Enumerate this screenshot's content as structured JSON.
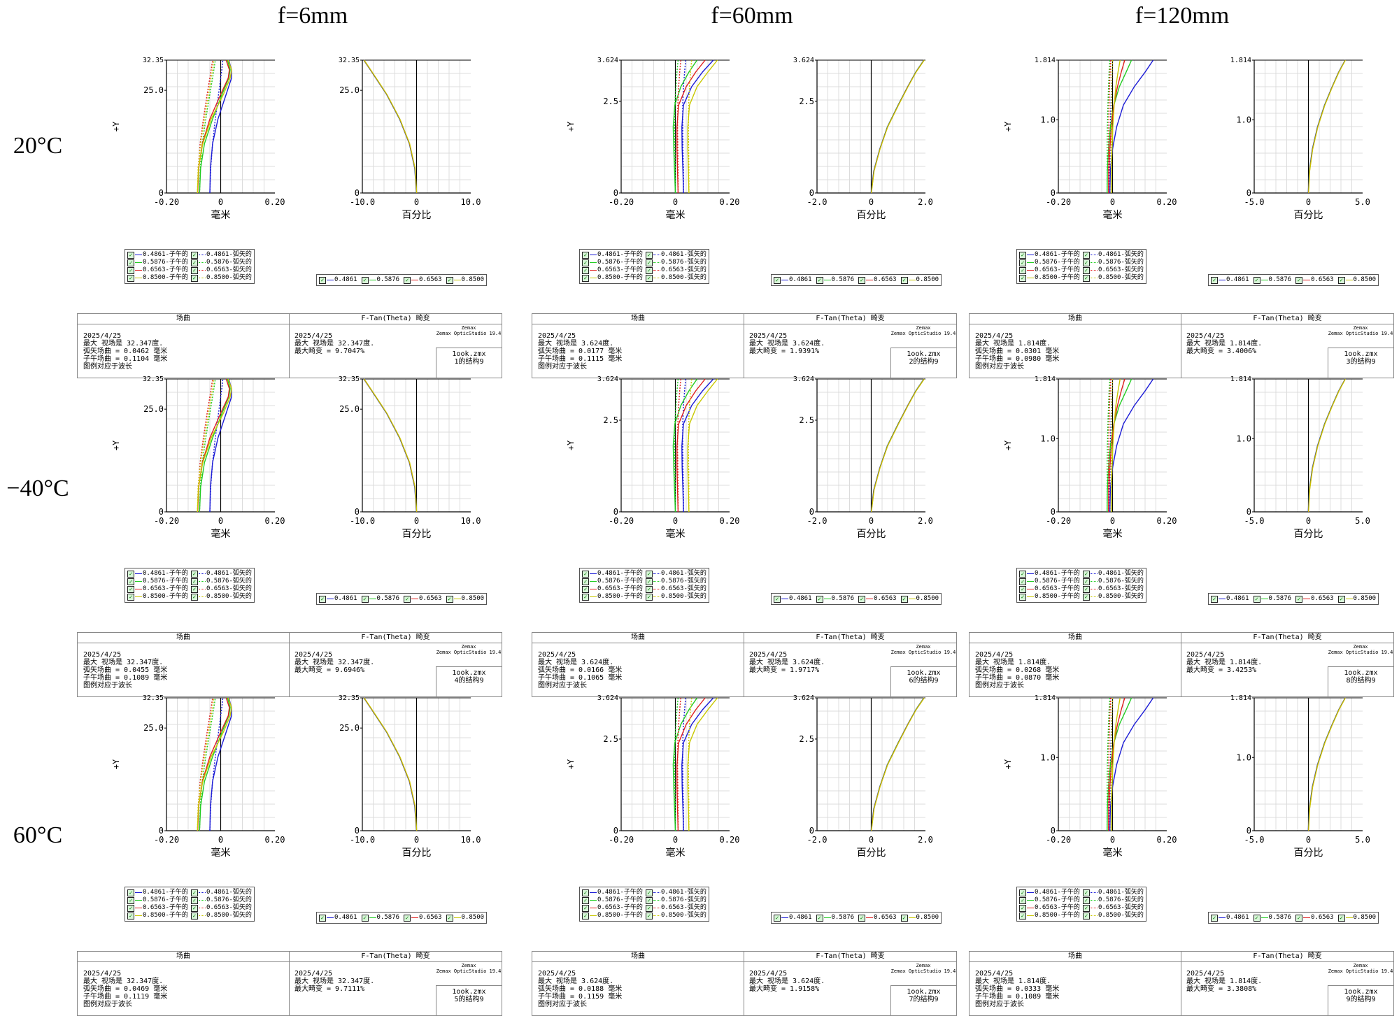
{
  "column_titles": [
    "f=6mm",
    "f=60mm",
    "f=120mm"
  ],
  "row_titles": [
    "20°C",
    "−40°C",
    "60°C"
  ],
  "colors": {
    "0.4861": "#1c1cd6",
    "0.5876": "#22cc22",
    "0.6563": "#e02020",
    "0.8500": "#c8c800"
  },
  "labels": {
    "field_header": "场曲",
    "distortion_header": "F-Tan(Theta) 畸变",
    "y_axis": "+Y",
    "field_x_axis": "毫米",
    "distortion_x_axis": "百分比",
    "date": "2025/4/25",
    "legend_note": "图例对应于波长",
    "zemax_line1": "Zemax",
    "zemax_line2": "Zemax OpticStudio 19.4",
    "file": "1ook.zmx"
  },
  "legend_field": [
    "0.4861-子午的",
    "0.4861-弧矢的",
    "0.5876-子午的",
    "0.5876-弧矢的",
    "0.6563-子午的",
    "0.6563-弧矢的",
    "0.8500-子午的",
    "0.8500-弧矢的"
  ],
  "legend_distortion": [
    "0.4861",
    "0.5876",
    "0.6563",
    "0.8500"
  ],
  "cells": [
    {
      "col": 0,
      "row": 0,
      "max_field": "最大 视场是 32.347度.",
      "sag": "弧矢场曲 = 0.0462 毫米",
      "tan": "子午场曲 = 0.1104 毫米",
      "dist": "最大畸变 = 9.7047%",
      "config": "1的结构9"
    },
    {
      "col": 1,
      "row": 0,
      "max_field": "最大 视场是 3.624度.",
      "sag": "弧矢场曲 = 0.0177 毫米",
      "tan": "子午场曲 = 0.1115 毫米",
      "dist": "最大畸变 = 1.9391%",
      "config": "2的结构9"
    },
    {
      "col": 2,
      "row": 0,
      "max_field": "最大 视场是 1.814度.",
      "sag": "弧矢场曲 = 0.0301 毫米",
      "tan": "子午场曲 = 0.0980 毫米",
      "dist": "最大畸变 = 3.4006%",
      "config": "3的结构9"
    },
    {
      "col": 0,
      "row": 1,
      "max_field": "最大 视场是 32.347度.",
      "sag": "弧矢场曲 = 0.0455 毫米",
      "tan": "子午场曲 = 0.1089 毫米",
      "dist": "最大畸变 = 9.6946%",
      "config": "4的结构9"
    },
    {
      "col": 1,
      "row": 1,
      "max_field": "最大 视场是 3.624度.",
      "sag": "弧矢场曲 = 0.0166 毫米",
      "tan": "子午场曲 = 0.1065 毫米",
      "dist": "最大畸变 = 1.9717%",
      "config": "6的结构9"
    },
    {
      "col": 2,
      "row": 1,
      "max_field": "最大 视场是 1.814度.",
      "sag": "弧矢场曲 = 0.0268 毫米",
      "tan": "子午场曲 = 0.0870 毫米",
      "dist": "最大畸变 = 3.4253%",
      "config": "8的结构9"
    },
    {
      "col": 0,
      "row": 2,
      "max_field": "最大 视场是 32.347度.",
      "sag": "弧矢场曲 = 0.0469 毫米",
      "tan": "子午场曲 = 0.1119 毫米",
      "dist": "最大畸变 = 9.7111%",
      "config": "5的结构9"
    },
    {
      "col": 1,
      "row": 2,
      "max_field": "最大 视场是 3.624度.",
      "sag": "弧矢场曲 = 0.0188 毫米",
      "tan": "子午场曲 = 0.1159 毫米",
      "dist": "最大畸变 = 1.9158%",
      "config": "7的结构9"
    },
    {
      "col": 2,
      "row": 2,
      "max_field": "最大 视场是 1.814度.",
      "sag": "弧矢场曲 = 0.0333 毫米",
      "tan": "子午场曲 = 0.1089 毫米",
      "dist": "最大畸变 = 3.3808%",
      "config": "9的结构9"
    }
  ],
  "chart_data": [
    {
      "type": "line",
      "lens": "f=6mm",
      "field_curvature": {
        "xlim": [
          -0.2,
          0.2
        ],
        "ylim": [
          0,
          32.35
        ],
        "xticks": [
          "-0.20",
          "0",
          "0.20"
        ],
        "yticks": [
          "0",
          "25.0",
          "32.35"
        ],
        "y": [
          0,
          6,
          12,
          18,
          24,
          28,
          30,
          32.35
        ],
        "series": [
          {
            "name": "0.4861-子午的",
            "x": [
              -0.04,
              -0.038,
              -0.03,
              -0.01,
              0.02,
              0.04,
              0.04,
              0.03
            ]
          },
          {
            "name": "0.4861-弧矢的",
            "x": [
              -0.04,
              -0.037,
              -0.03,
              -0.02,
              -0.008,
              0.0,
              0.004,
              0.008
            ]
          },
          {
            "name": "0.5876-子午的",
            "x": [
              -0.078,
              -0.074,
              -0.06,
              -0.03,
              0.005,
              0.03,
              0.035,
              0.025
            ]
          },
          {
            "name": "0.5876-弧矢的",
            "x": [
              -0.078,
              -0.075,
              -0.068,
              -0.055,
              -0.04,
              -0.03,
              -0.025,
              -0.02
            ]
          },
          {
            "name": "0.6563-子午的",
            "x": [
              -0.085,
              -0.081,
              -0.068,
              -0.04,
              0.0,
              0.028,
              0.032,
              0.02
            ]
          },
          {
            "name": "0.6563-弧矢的",
            "x": [
              -0.085,
              -0.083,
              -0.076,
              -0.064,
              -0.05,
              -0.04,
              -0.035,
              -0.03
            ]
          },
          {
            "name": "0.8500-子午的",
            "x": [
              -0.086,
              -0.082,
              -0.066,
              -0.035,
              0.01,
              0.035,
              0.04,
              0.028
            ]
          },
          {
            "name": "0.8500-弧矢的",
            "x": [
              -0.086,
              -0.083,
              -0.074,
              -0.06,
              -0.045,
              -0.035,
              -0.03,
              -0.025
            ]
          }
        ]
      },
      "distortion": {
        "xlim": [
          -10,
          10
        ],
        "ylim": [
          0,
          32.35
        ],
        "xticks": [
          "-10.0",
          "0",
          "10.0"
        ],
        "yticks": [
          "0",
          "25.0",
          "32.35"
        ],
        "y": [
          0,
          6,
          12,
          18,
          24,
          28,
          30,
          32.35
        ],
        "x": [
          0,
          -0.3,
          -1.3,
          -3.1,
          -5.5,
          -7.5,
          -8.5,
          -9.7
        ]
      }
    },
    {
      "type": "line",
      "lens": "f=60mm",
      "field_curvature": {
        "xlim": [
          -0.2,
          0.2
        ],
        "ylim": [
          0,
          3.624
        ],
        "xticks": [
          "-0.20",
          "0",
          "0.20"
        ],
        "yticks": [
          "0",
          "2.5",
          "3.624"
        ],
        "y": [
          0,
          0.6,
          1.2,
          1.8,
          2.4,
          2.9,
          3.3,
          3.624
        ],
        "series": [
          {
            "name": "0.4861-子午的",
            "x": [
              0.03,
              0.028,
              0.025,
              0.024,
              0.03,
              0.06,
              0.1,
              0.14
            ]
          },
          {
            "name": "0.4861-弧矢的",
            "x": [
              0.03,
              0.03,
              0.028,
              0.027,
              0.027,
              0.03,
              0.034,
              0.038
            ]
          },
          {
            "name": "0.5876-子午的",
            "x": [
              0.0,
              -0.003,
              -0.006,
              -0.008,
              -0.002,
              0.02,
              0.05,
              0.08
            ]
          },
          {
            "name": "0.5876-弧矢的",
            "x": [
              0.0,
              0.0,
              -0.002,
              -0.003,
              -0.002,
              0.002,
              0.006,
              0.01
            ]
          },
          {
            "name": "0.6563-子午的",
            "x": [
              0.01,
              0.008,
              0.006,
              0.006,
              0.012,
              0.04,
              0.075,
              0.11
            ]
          },
          {
            "name": "0.6563-弧矢的",
            "x": [
              0.01,
              0.01,
              0.009,
              0.008,
              0.009,
              0.012,
              0.016,
              0.02
            ]
          },
          {
            "name": "0.8500-子午的",
            "x": [
              0.05,
              0.048,
              0.046,
              0.046,
              0.052,
              0.08,
              0.12,
              0.155
            ]
          },
          {
            "name": "0.8500-弧矢的",
            "x": [
              0.05,
              0.05,
              0.049,
              0.048,
              0.049,
              0.052,
              0.056,
              0.06
            ]
          }
        ]
      },
      "distortion": {
        "xlim": [
          -2,
          2
        ],
        "ylim": [
          0,
          3.624
        ],
        "xticks": [
          "-2.0",
          "0",
          "2.0"
        ],
        "yticks": [
          "0",
          "2.5",
          "3.624"
        ],
        "y": [
          0,
          0.6,
          1.2,
          1.8,
          2.4,
          2.9,
          3.3,
          3.624
        ],
        "x": [
          0,
          0.1,
          0.32,
          0.6,
          1.0,
          1.35,
          1.65,
          1.95
        ]
      }
    },
    {
      "type": "line",
      "lens": "f=120mm",
      "field_curvature": {
        "xlim": [
          -0.2,
          0.2
        ],
        "ylim": [
          0,
          1.814
        ],
        "xticks": [
          "-0.20",
          "0",
          "0.20"
        ],
        "yticks": [
          "0",
          "1.0",
          "1.814"
        ],
        "y": [
          0,
          0.3,
          0.6,
          0.9,
          1.2,
          1.45,
          1.65,
          1.814
        ],
        "series": [
          {
            "name": "0.4861-子午的",
            "x": [
              -0.01,
              -0.008,
              0.0,
              0.015,
              0.04,
              0.08,
              0.12,
              0.15
            ]
          },
          {
            "name": "0.4861-弧矢的",
            "x": [
              -0.01,
              -0.01,
              -0.009,
              -0.008,
              -0.006,
              -0.004,
              -0.002,
              0.0
            ]
          },
          {
            "name": "0.5876-子午的",
            "x": [
              -0.02,
              -0.019,
              -0.015,
              -0.008,
              0.005,
              0.025,
              0.05,
              0.07
            ]
          },
          {
            "name": "0.5876-弧矢的",
            "x": [
              -0.02,
              -0.02,
              -0.02,
              -0.019,
              -0.017,
              -0.015,
              -0.013,
              -0.01
            ]
          },
          {
            "name": "0.6563-子午的",
            "x": [
              -0.015,
              -0.014,
              -0.01,
              -0.004,
              0.005,
              0.018,
              0.032,
              0.045
            ]
          },
          {
            "name": "0.6563-弧矢的",
            "x": [
              -0.015,
              -0.015,
              -0.015,
              -0.014,
              -0.013,
              -0.011,
              -0.009,
              -0.007
            ]
          },
          {
            "name": "0.8500-子午的",
            "x": [
              -0.005,
              -0.004,
              -0.002,
              0.001,
              0.006,
              0.012,
              0.02,
              0.028
            ]
          },
          {
            "name": "0.8500-弧矢的",
            "x": [
              -0.005,
              -0.005,
              -0.005,
              -0.004,
              -0.004,
              -0.003,
              -0.002,
              0.0
            ]
          }
        ]
      },
      "distortion": {
        "xlim": [
          -5,
          5
        ],
        "ylim": [
          0,
          1.814
        ],
        "xticks": [
          "-5.0",
          "0",
          "5.0"
        ],
        "yticks": [
          "0",
          "1.0",
          "1.814"
        ],
        "y": [
          0,
          0.3,
          0.6,
          0.9,
          1.2,
          1.45,
          1.65,
          1.814
        ],
        "x": [
          0,
          0.1,
          0.38,
          0.85,
          1.5,
          2.2,
          2.8,
          3.4
        ]
      }
    }
  ]
}
